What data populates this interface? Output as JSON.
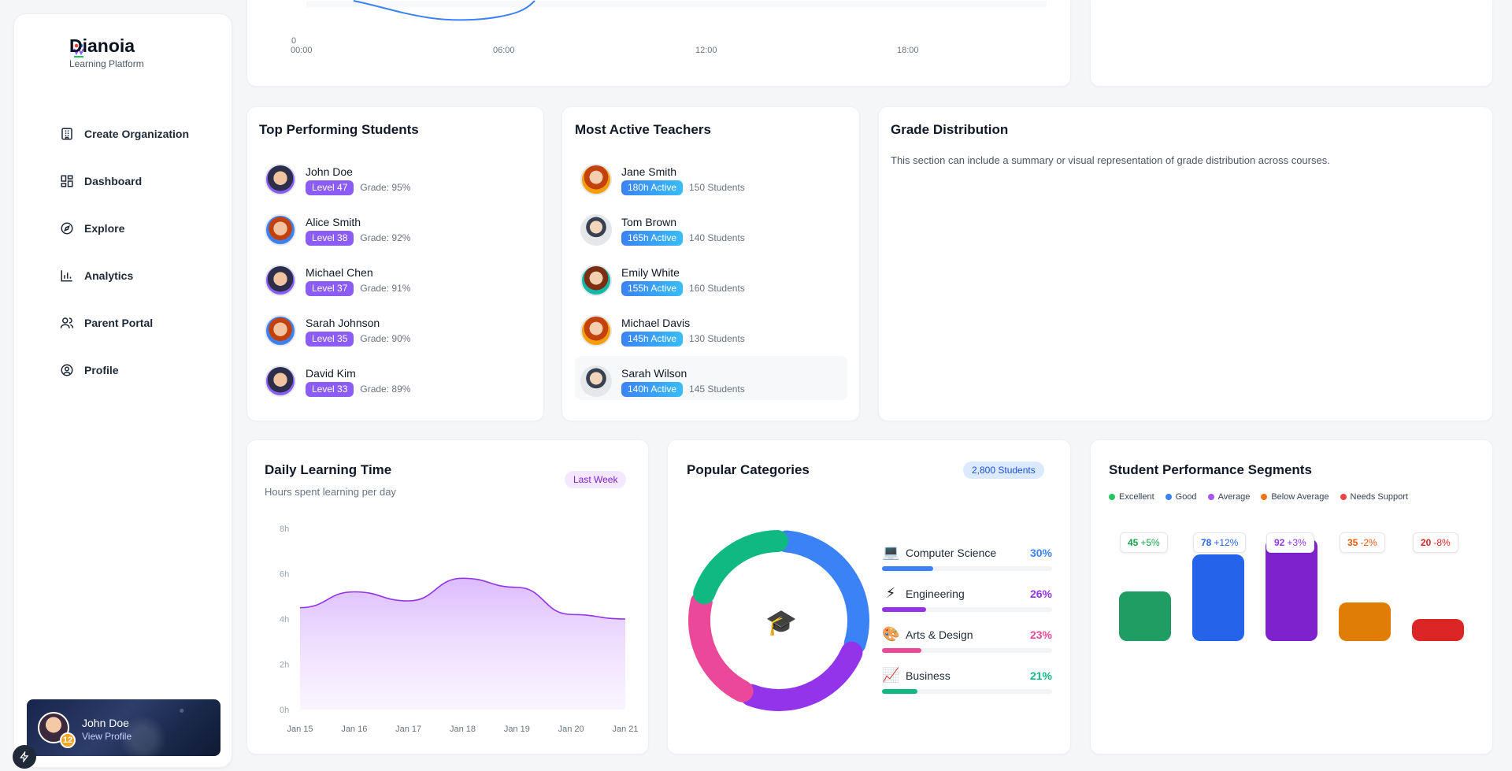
{
  "brand": {
    "name": "Dianoia",
    "subtitle": "Learning Platform"
  },
  "nav": [
    {
      "label": "Create Organization",
      "icon": "building-icon"
    },
    {
      "label": "Dashboard",
      "icon": "grid-icon"
    },
    {
      "label": "Explore",
      "icon": "compass-icon"
    },
    {
      "label": "Analytics",
      "icon": "bar-chart-icon"
    },
    {
      "label": "Parent Portal",
      "icon": "users-icon"
    },
    {
      "label": "Profile",
      "icon": "user-circle-icon"
    }
  ],
  "user": {
    "name": "John Doe",
    "link": "View Profile",
    "badge": "12"
  },
  "top_chart": {
    "y_zero": "0",
    "x_ticks": [
      "00:00",
      "06:00",
      "12:00",
      "18:00"
    ]
  },
  "students": {
    "title": "Top Performing Students",
    "items": [
      {
        "name": "John Doe",
        "level": "Level 47",
        "grade": "Grade: 95%"
      },
      {
        "name": "Alice Smith",
        "level": "Level 38",
        "grade": "Grade: 92%"
      },
      {
        "name": "Michael Chen",
        "level": "Level 37",
        "grade": "Grade: 91%"
      },
      {
        "name": "Sarah Johnson",
        "level": "Level 35",
        "grade": "Grade: 90%"
      },
      {
        "name": "David Kim",
        "level": "Level 33",
        "grade": "Grade: 89%"
      }
    ]
  },
  "teachers": {
    "title": "Most Active Teachers",
    "items": [
      {
        "name": "Jane Smith",
        "active": "180h Active",
        "students": "150 Students"
      },
      {
        "name": "Tom Brown",
        "active": "165h Active",
        "students": "140 Students"
      },
      {
        "name": "Emily White",
        "active": "155h Active",
        "students": "160 Students"
      },
      {
        "name": "Michael Davis",
        "active": "145h Active",
        "students": "130 Students"
      },
      {
        "name": "Sarah Wilson",
        "active": "140h Active",
        "students": "145 Students"
      }
    ]
  },
  "grade": {
    "title": "Grade Distribution",
    "description": "This section can include a summary or visual representation of grade distribution across courses."
  },
  "daily": {
    "title": "Daily Learning Time",
    "subtitle": "Hours spent learning per day",
    "tag": "Last Week"
  },
  "chart_data": {
    "type": "area",
    "x": [
      "Jan 15",
      "Jan 16",
      "Jan 17",
      "Jan 18",
      "Jan 19",
      "Jan 20",
      "Jan 21"
    ],
    "values": [
      4.5,
      5.2,
      4.8,
      5.8,
      5.4,
      4.2,
      4.0
    ],
    "y_ticks": [
      "0h",
      "2h",
      "4h",
      "6h",
      "8h"
    ],
    "ylim": [
      0,
      8
    ],
    "color": "#9333ea"
  },
  "categories": {
    "title": "Popular Categories",
    "tag": "2,800 Students",
    "center_icon": "graduation-cap-icon",
    "items": [
      {
        "emoji": "💻",
        "name": "Computer Science",
        "pct": "30%",
        "value": 30,
        "color": "#3b82f6"
      },
      {
        "emoji": "⚡",
        "name": "Engineering",
        "pct": "26%",
        "value": 26,
        "color": "#9333ea"
      },
      {
        "emoji": "🎨",
        "name": "Arts & Design",
        "pct": "23%",
        "value": 23,
        "color": "#ec4899"
      },
      {
        "emoji": "📈",
        "name": "Business",
        "pct": "21%",
        "value": 21,
        "color": "#10b981"
      }
    ]
  },
  "segments": {
    "title": "Student Performance Segments",
    "legend": [
      {
        "label": "Excellent",
        "color": "#22c55e"
      },
      {
        "label": "Good",
        "color": "#3b82f6"
      },
      {
        "label": "Average",
        "color": "#a855f7"
      },
      {
        "label": "Below Average",
        "color": "#f97316"
      },
      {
        "label": "Needs Support",
        "color": "#ef4444"
      }
    ],
    "bars": [
      {
        "value": "45",
        "change": "+5%",
        "num": 45,
        "color": "#1f9d63",
        "text": "#16a34a"
      },
      {
        "value": "78",
        "change": "+12%",
        "num": 78,
        "color": "#2563eb",
        "text": "#2563eb"
      },
      {
        "value": "92",
        "change": "+3%",
        "num": 92,
        "color": "#7e22ce",
        "text": "#9333ea"
      },
      {
        "value": "35",
        "change": "-2%",
        "num": 35,
        "color": "#e07d07",
        "text": "#ea580c"
      },
      {
        "value": "20",
        "change": "-8%",
        "num": 20,
        "color": "#dc2626",
        "text": "#dc2626"
      }
    ]
  }
}
